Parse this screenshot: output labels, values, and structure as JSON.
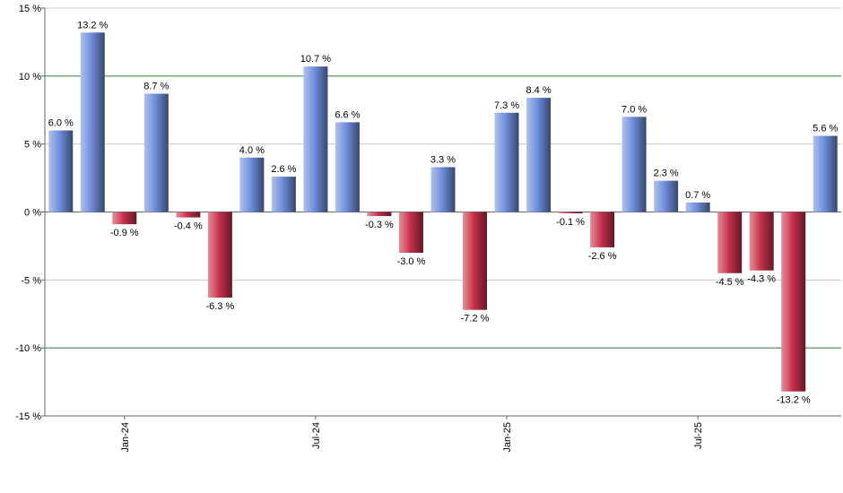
{
  "chart_data": {
    "type": "bar",
    "categories": [
      null,
      null,
      "Jan-24",
      null,
      null,
      null,
      null,
      null,
      "Jul-24",
      null,
      null,
      null,
      null,
      null,
      "Jan-25",
      null,
      null,
      null,
      null,
      null,
      "Jul-25",
      null,
      null,
      null,
      null
    ],
    "values": [
      6.0,
      13.2,
      -0.9,
      8.7,
      -0.4,
      -6.3,
      4.0,
      2.6,
      10.7,
      6.6,
      -0.3,
      -3.0,
      3.3,
      -7.2,
      7.3,
      8.4,
      -0.1,
      -2.6,
      7.0,
      2.3,
      0.7,
      -4.5,
      -4.3,
      -13.2,
      5.6
    ],
    "value_labels": [
      "6.0 %",
      "13.2 %",
      "-0.9 %",
      "8.7 %",
      "-0.4 %",
      "-6.3 %",
      "4.0 %",
      "2.6 %",
      "10.7 %",
      "6.6 %",
      "-0.3 %",
      "-3.0 %",
      "3.3 %",
      "-7.2 %",
      "7.3 %",
      "8.4 %",
      "-0.1 %",
      "-2.6 %",
      "7.0 %",
      "2.3 %",
      "0.7 %",
      "-4.5 %",
      "-4.3 %",
      "-13.2 %",
      "5.6 %"
    ],
    "positive_color": "#6f8fdc",
    "negative_color": "#c8304c",
    "ylim": [
      -15,
      15
    ],
    "yticks": [
      {
        "value": -15,
        "label": "-15 %"
      },
      {
        "value": -10,
        "label": "-10 %"
      },
      {
        "value": -5,
        "label": "-5 %"
      },
      {
        "value": 0,
        "label": "0 %"
      },
      {
        "value": 5,
        "label": "5 %"
      },
      {
        "value": 10,
        "label": "10 %"
      },
      {
        "value": 15,
        "label": "15 %"
      }
    ],
    "grid": true,
    "grid_colors": [
      "#c8c8c8",
      "#2e7d32",
      "#c8c8c8",
      "#666666",
      "#c8c8c8",
      "#2e7d32",
      "#c8c8c8"
    ]
  }
}
